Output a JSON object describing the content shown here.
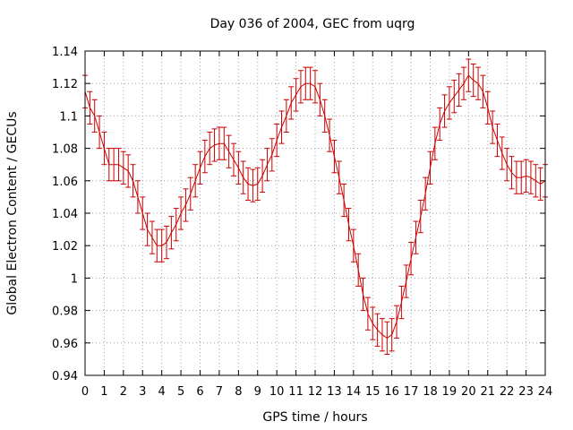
{
  "chart_data": {
    "type": "line",
    "title": "Day 036 of 2004, GEC from uqrg",
    "xlabel": "GPS time / hours",
    "ylabel": "Global Electron Content / GECUs",
    "xlim": [
      0,
      24
    ],
    "ylim": [
      0.94,
      1.14
    ],
    "x_ticks": [
      "0",
      "1",
      "2",
      "3",
      "4",
      "5",
      "6",
      "7",
      "8",
      "9",
      "10",
      "11",
      "12",
      "13",
      "14",
      "15",
      "16",
      "17",
      "18",
      "19",
      "20",
      "21",
      "22",
      "23",
      "24"
    ],
    "y_ticks": [
      "0.94",
      "0.96",
      "0.98",
      "1",
      "1.02",
      "1.04",
      "1.06",
      "1.08",
      "1.1",
      "1.12",
      "1.14"
    ],
    "grid": true,
    "series_color": "#cc0000",
    "error_bar_half_width": 0.01,
    "series": [
      {
        "x": [
          0.0,
          0.25,
          0.5,
          0.75,
          1.0,
          1.25,
          1.5,
          1.75,
          2.0,
          2.25,
          2.5,
          2.75,
          3.0,
          3.25,
          3.5,
          3.75,
          4.0,
          4.25,
          4.5,
          4.75,
          5.0,
          5.25,
          5.5,
          5.75,
          6.0,
          6.25,
          6.5,
          6.75,
          7.0,
          7.25,
          7.5,
          7.75,
          8.0,
          8.25,
          8.5,
          8.75,
          9.0,
          9.25,
          9.5,
          9.75,
          10.0,
          10.25,
          10.5,
          10.75,
          11.0,
          11.25,
          11.5,
          11.75,
          12.0,
          12.25,
          12.5,
          12.75,
          13.0,
          13.25,
          13.5,
          13.75,
          14.0,
          14.25,
          14.5,
          14.75,
          15.0,
          15.25,
          15.5,
          15.75,
          16.0,
          16.25,
          16.5,
          16.75,
          17.0,
          17.25,
          17.5,
          17.75,
          18.0,
          18.25,
          18.5,
          18.75,
          19.0,
          19.25,
          19.5,
          19.75,
          20.0,
          20.25,
          20.5,
          20.75,
          21.0,
          21.25,
          21.5,
          21.75,
          22.0,
          22.25,
          22.5,
          22.75,
          23.0,
          23.25,
          23.5,
          23.75,
          24.0
        ],
        "y": [
          1.115,
          1.105,
          1.1,
          1.09,
          1.08,
          1.07,
          1.07,
          1.07,
          1.068,
          1.066,
          1.06,
          1.05,
          1.04,
          1.03,
          1.025,
          1.02,
          1.02,
          1.022,
          1.028,
          1.033,
          1.04,
          1.045,
          1.052,
          1.06,
          1.068,
          1.075,
          1.08,
          1.082,
          1.083,
          1.083,
          1.078,
          1.073,
          1.068,
          1.062,
          1.058,
          1.057,
          1.058,
          1.063,
          1.07,
          1.076,
          1.085,
          1.093,
          1.1,
          1.108,
          1.113,
          1.118,
          1.12,
          1.12,
          1.118,
          1.11,
          1.1,
          1.088,
          1.075,
          1.062,
          1.048,
          1.033,
          1.02,
          1.005,
          0.99,
          0.978,
          0.972,
          0.968,
          0.965,
          0.963,
          0.965,
          0.973,
          0.985,
          0.998,
          1.012,
          1.025,
          1.038,
          1.052,
          1.068,
          1.083,
          1.095,
          1.103,
          1.108,
          1.112,
          1.116,
          1.12,
          1.125,
          1.122,
          1.12,
          1.115,
          1.105,
          1.093,
          1.085,
          1.077,
          1.07,
          1.065,
          1.062,
          1.062,
          1.063,
          1.062,
          1.06,
          1.058,
          1.06
        ]
      }
    ]
  }
}
